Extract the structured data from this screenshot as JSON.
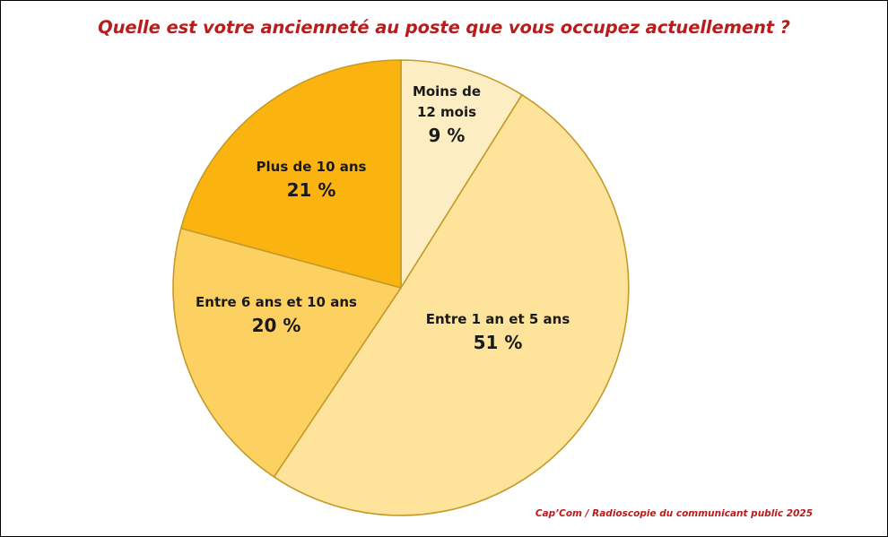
{
  "source": "Cap’Com / Radioscopie du communicant public 2025",
  "chart_data": {
    "type": "pie",
    "title": "Quelle est votre ancienneté au poste que vous occupez actuellement ?",
    "start_angle_deg": 0,
    "direction": "clockwise",
    "slices": [
      {
        "label_lines": [
          "Moins de",
          "12 mois"
        ],
        "value": 9,
        "value_label": "9 %",
        "color": "#fdedc2"
      },
      {
        "label_lines": [
          "Entre 1 an et 5 ans"
        ],
        "value": 51,
        "value_label": "51 %",
        "color": "#fde49a"
      },
      {
        "label_lines": [
          "Entre 6 ans et 10 ans"
        ],
        "value": 20,
        "value_label": "20 %",
        "color": "#fdd062"
      },
      {
        "label_lines": [
          "Plus de 10 ans"
        ],
        "value": 21,
        "value_label": "21 %",
        "color": "#fbb40f"
      }
    ]
  }
}
